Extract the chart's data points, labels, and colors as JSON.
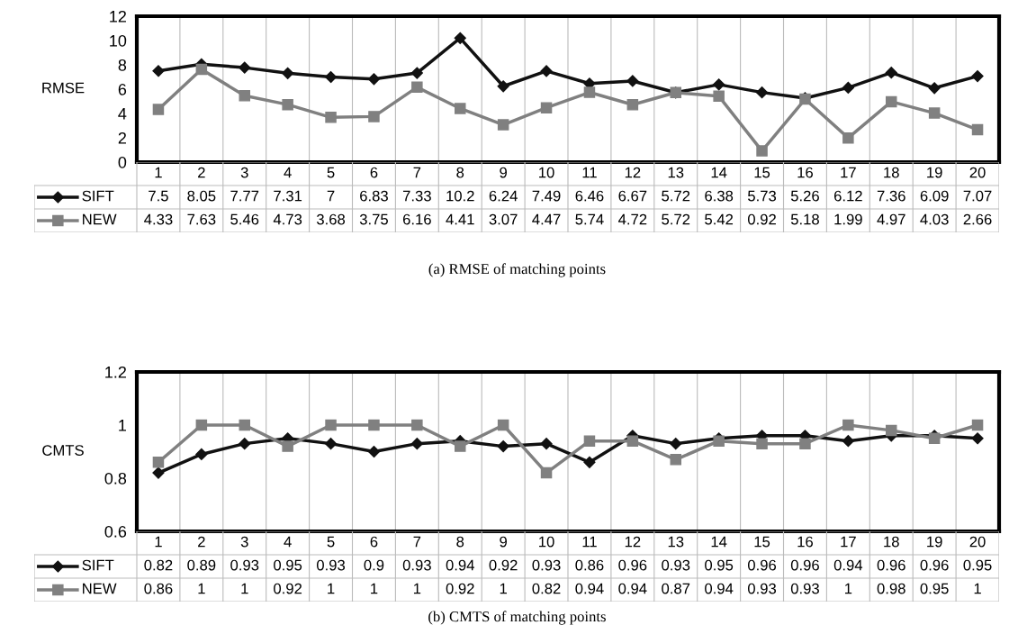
{
  "chart_data": [
    {
      "type": "line",
      "ylabel": "RMSE",
      "categories": [
        "1",
        "2",
        "3",
        "4",
        "5",
        "6",
        "7",
        "8",
        "9",
        "10",
        "11",
        "12",
        "13",
        "14",
        "15",
        "16",
        "17",
        "18",
        "19",
        "20"
      ],
      "series": [
        {
          "name": "SIFT",
          "color": "#111111",
          "marker": "diamond",
          "values": [
            7.5,
            8.05,
            7.77,
            7.31,
            7,
            6.83,
            7.33,
            10.2,
            6.24,
            7.49,
            6.46,
            6.67,
            5.72,
            6.38,
            5.73,
            5.26,
            6.12,
            7.36,
            6.09,
            7.07
          ]
        },
        {
          "name": "NEW",
          "color": "#808080",
          "marker": "square",
          "values": [
            4.33,
            7.63,
            5.46,
            4.73,
            3.68,
            3.75,
            6.16,
            4.41,
            3.07,
            4.47,
            5.74,
            4.72,
            5.72,
            5.42,
            0.92,
            5.18,
            1.99,
            4.97,
            4.03,
            2.66
          ]
        }
      ],
      "ylim": [
        0,
        12
      ],
      "yticks": [
        0,
        2,
        4,
        6,
        8,
        10,
        12
      ],
      "grid": "x",
      "legend": "bottom left",
      "data_labels": true,
      "line_style": "solid",
      "annotations": [
        "(a) RMSE of matching points"
      ]
    },
    {
      "type": "line",
      "ylabel": "CMTS",
      "categories": [
        "1",
        "2",
        "3",
        "4",
        "5",
        "6",
        "7",
        "8",
        "9",
        "10",
        "11",
        "12",
        "13",
        "14",
        "15",
        "16",
        "17",
        "18",
        "19",
        "20"
      ],
      "series": [
        {
          "name": "SIFT",
          "color": "#111111",
          "marker": "diamond",
          "values": [
            0.82,
            0.89,
            0.93,
            0.95,
            0.93,
            0.9,
            0.93,
            0.94,
            0.92,
            0.93,
            0.86,
            0.96,
            0.93,
            0.95,
            0.96,
            0.96,
            0.94,
            0.96,
            0.96,
            0.95
          ]
        },
        {
          "name": "NEW",
          "color": "#808080",
          "marker": "square",
          "values": [
            0.86,
            1,
            1,
            0.92,
            1,
            1,
            1,
            0.92,
            1,
            0.82,
            0.94,
            0.94,
            0.87,
            0.94,
            0.93,
            0.93,
            1,
            0.98,
            0.95,
            1
          ]
        }
      ],
      "ylim": [
        0.6,
        1.2
      ],
      "yticks": [
        0.6,
        0.8,
        1,
        1.2
      ],
      "grid": "x",
      "legend": "bottom left",
      "data_labels": true,
      "line_style": "solid",
      "annotations": [
        "(b) CMTS of matching points"
      ]
    }
  ]
}
